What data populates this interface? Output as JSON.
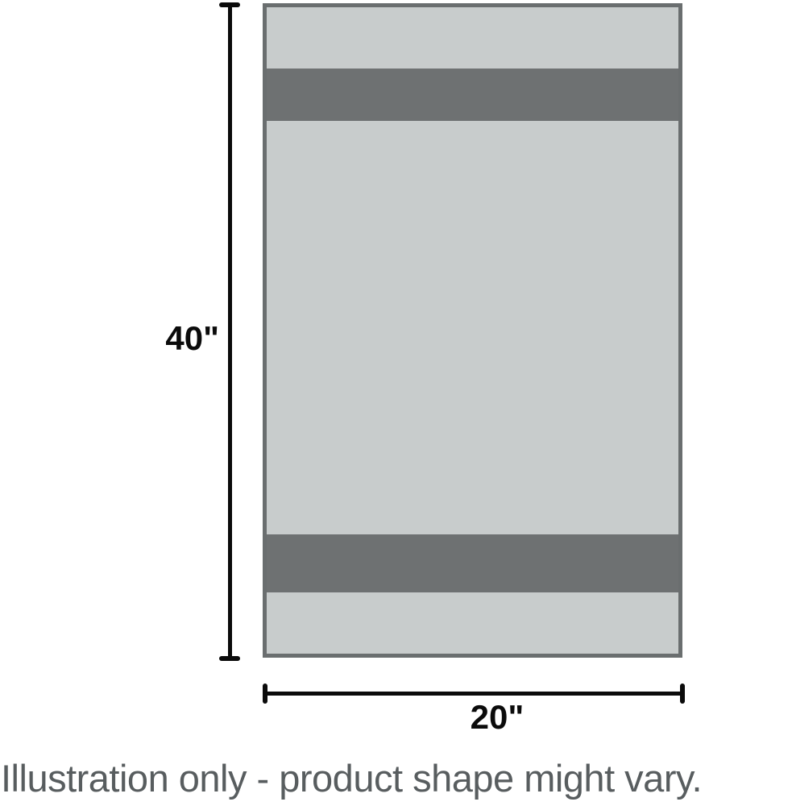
{
  "illustration": {
    "height_label": "40\"",
    "width_label": "20\"",
    "caption": "Illustration only - product shape might vary."
  },
  "colors": {
    "background": "#ffffff",
    "towel_fill": "#c8cccc",
    "towel_stripe": "#6e7172",
    "towel_border": "#6a6e6f",
    "dimension_line": "#0b0b0b",
    "caption_text": "#585d5f"
  }
}
